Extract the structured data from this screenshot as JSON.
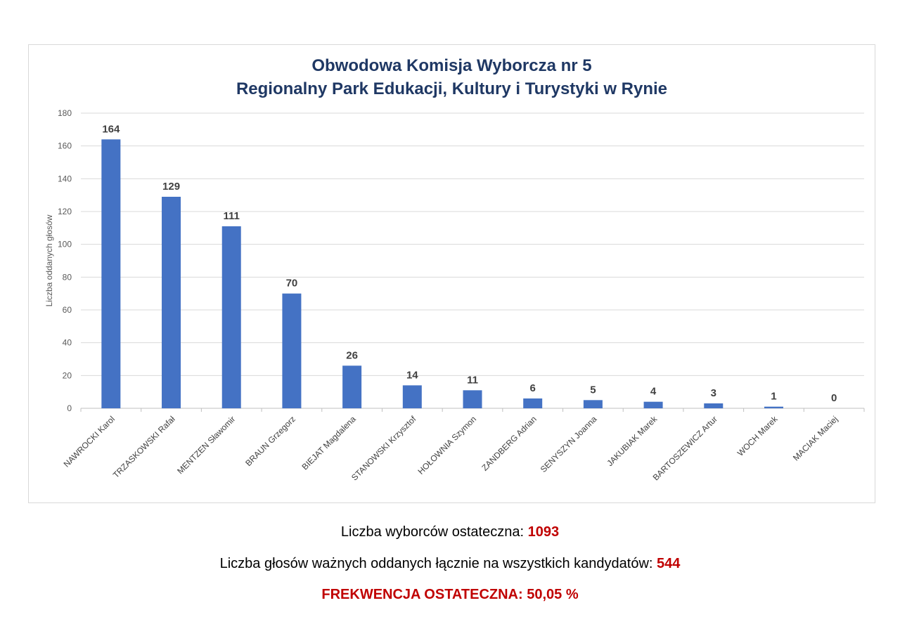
{
  "chart_data": {
    "type": "bar",
    "title": "Obwodowa Komisja Wyborcza nr 5",
    "subtitle": "Regionalny Park Edukacji, Kultury i Turystyki w Rynie",
    "xlabel": "",
    "ylabel": "Liczba oddanych głosów",
    "ylim": [
      0,
      180
    ],
    "yticks": [
      0,
      20,
      40,
      60,
      80,
      100,
      120,
      140,
      160,
      180
    ],
    "grid": true,
    "bar_color": "#4472c4",
    "categories": [
      "NAWROCKI Karol",
      "TRZASKOWSKI Rafał",
      "MENTZEN Sławomir",
      "BRAUN Grzegorz",
      "BIEJAT Magdalena",
      "STANOWSKI Krzysztof",
      "HOŁOWNIA Szymon",
      "ZANDBERG Adrian",
      "SENYSZYN Joanna",
      "JAKUBIAK Marek",
      "BARTOSZEWICZ Artur",
      "WOCH Marek",
      "MACIAK Maciej"
    ],
    "values": [
      164,
      129,
      111,
      70,
      26,
      14,
      11,
      6,
      5,
      4,
      3,
      1,
      0
    ]
  },
  "footer": {
    "voters_label": "Liczba wyborców ostateczna: ",
    "voters_value": "1093",
    "votes_label": "Liczba głosów ważnych oddanych łącznie na wszystkich kandydatów: ",
    "votes_value": "544",
    "turnout": "FREKWENCJA OSTATECZNA: 50,05 %"
  },
  "colors": {
    "title": "#1f3864",
    "highlight": "#c00000",
    "bar": "#4472c4"
  }
}
